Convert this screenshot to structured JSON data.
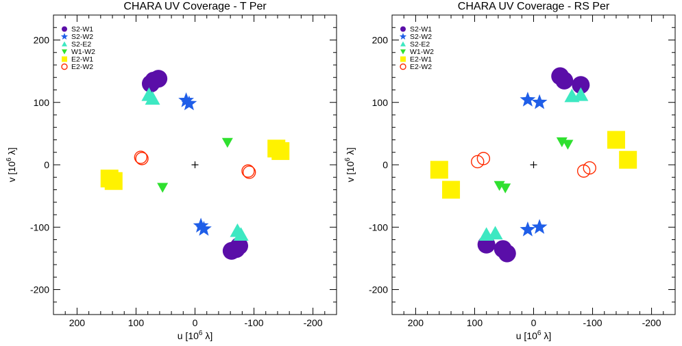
{
  "chart_data": [
    {
      "type": "scatter",
      "title": "CHARA UV Coverage - T Per",
      "xlabel_main": "u [10",
      "xlabel_exp": "6",
      "xlabel_unit": " λ]",
      "ylabel_main": "v [10",
      "ylabel_exp": "6",
      "ylabel_unit": " λ]",
      "xlim": [
        240,
        -240
      ],
      "ylim": [
        -240,
        240
      ],
      "xticks": [
        200,
        100,
        0,
        -100,
        -200
      ],
      "yticks": [
        -200,
        -100,
        0,
        100,
        200
      ],
      "origin_marker": "+",
      "legend_position": "top-left",
      "series": [
        {
          "name": "S2-W1",
          "marker": "circle",
          "color": "#5a0ea8",
          "points": [
            [
              75,
              130
            ],
            [
              62,
              138
            ],
            [
              70,
              135
            ],
            [
              -75,
              -130
            ],
            [
              -62,
              -138
            ],
            [
              -70,
              -135
            ]
          ]
        },
        {
          "name": "S2-W2",
          "marker": "star",
          "color": "#1f5ee8",
          "points": [
            [
              15,
              103
            ],
            [
              10,
              98
            ],
            [
              -15,
              -103
            ],
            [
              -10,
              -98
            ]
          ]
        },
        {
          "name": "S2-E2",
          "marker": "triangle-up",
          "color": "#3de8c2",
          "points": [
            [
              78,
              112
            ],
            [
              72,
              106
            ],
            [
              -78,
              -112
            ],
            [
              -72,
              -106
            ]
          ]
        },
        {
          "name": "W1-W2",
          "marker": "triangle-down",
          "color": "#2fe02f",
          "points": [
            [
              -55,
              36
            ],
            [
              55,
              -36
            ]
          ]
        },
        {
          "name": "E2-W1",
          "marker": "square",
          "color": "#fff200",
          "points": [
            [
              -145,
              22
            ],
            [
              -138,
              26
            ],
            [
              145,
              -22
            ],
            [
              138,
              -26
            ]
          ]
        },
        {
          "name": "E2-W2",
          "marker": "circle-open",
          "color": "#ff2a00",
          "points": [
            [
              90,
              10
            ],
            [
              92,
              12
            ],
            [
              -90,
              -10
            ],
            [
              -92,
              -12
            ]
          ]
        }
      ]
    },
    {
      "type": "scatter",
      "title": "CHARA UV Coverage - RS Per",
      "xlabel_main": "u [10",
      "xlabel_exp": "6",
      "xlabel_unit": " λ]",
      "ylabel_main": "v [10",
      "ylabel_exp": "6",
      "ylabel_unit": " λ]",
      "xlim": [
        240,
        -240
      ],
      "ylim": [
        -240,
        240
      ],
      "xticks": [
        200,
        100,
        0,
        -100,
        -200
      ],
      "yticks": [
        -200,
        -100,
        0,
        100,
        200
      ],
      "origin_marker": "+",
      "legend_position": "top-left",
      "series": [
        {
          "name": "S2-W1",
          "marker": "circle",
          "color": "#5a0ea8",
          "points": [
            [
              -45,
              142
            ],
            [
              -52,
              135
            ],
            [
              -80,
              128
            ],
            [
              45,
              -142
            ],
            [
              52,
              -135
            ],
            [
              80,
              -128
            ]
          ]
        },
        {
          "name": "S2-W2",
          "marker": "star",
          "color": "#1f5ee8",
          "points": [
            [
              10,
              104
            ],
            [
              -10,
              100
            ],
            [
              10,
              -104
            ],
            [
              -10,
              -100
            ]
          ]
        },
        {
          "name": "S2-E2",
          "marker": "triangle-up",
          "color": "#3de8c2",
          "points": [
            [
              -65,
              110
            ],
            [
              -80,
              112
            ],
            [
              65,
              -110
            ],
            [
              80,
              -112
            ]
          ]
        },
        {
          "name": "W1-W2",
          "marker": "triangle-down",
          "color": "#2fe02f",
          "points": [
            [
              -48,
              37
            ],
            [
              -58,
              33
            ],
            [
              48,
              -37
            ],
            [
              58,
              -33
            ]
          ]
        },
        {
          "name": "E2-W1",
          "marker": "square",
          "color": "#fff200",
          "points": [
            [
              -140,
              40
            ],
            [
              -160,
              8
            ],
            [
              140,
              -40
            ],
            [
              160,
              -8
            ]
          ]
        },
        {
          "name": "E2-W2",
          "marker": "circle-open",
          "color": "#ff2a00",
          "points": [
            [
              -95,
              -5
            ],
            [
              -85,
              -10
            ],
            [
              95,
              5
            ],
            [
              85,
              10
            ]
          ]
        }
      ]
    }
  ]
}
